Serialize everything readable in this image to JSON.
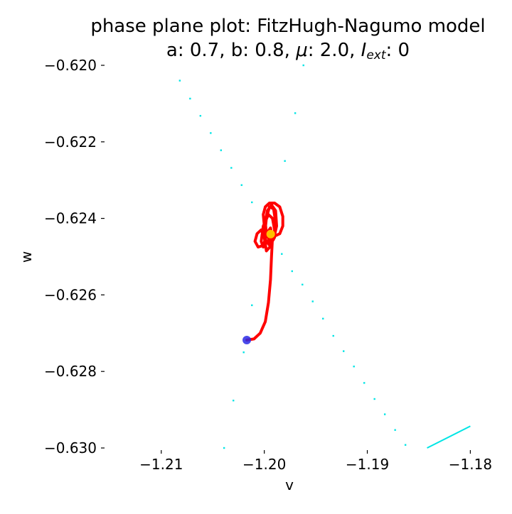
{
  "chart_data": {
    "type": "scatter",
    "title": "phase plane plot: FitzHugh-Nagumo model",
    "subtitle": {
      "a_label": "a:",
      "a_value": "0.7",
      "b_label": "b:",
      "b_value": "0.8",
      "mu_symbol": "μ",
      "mu_value": "2.0",
      "iext_symbol": "I",
      "iext_subscript": "ext",
      "iext_value": "0"
    },
    "xlabel": "v",
    "ylabel": "w",
    "xlim": [
      -1.2153,
      -1.1792
    ],
    "ylim": [
      -0.63,
      -0.62
    ],
    "xticks": [
      -1.21,
      -1.2,
      -1.19,
      -1.18
    ],
    "xtick_labels": [
      "−1.21",
      "−1.20",
      "−1.19",
      "−1.18"
    ],
    "yticks": [
      -0.62,
      -0.622,
      -0.624,
      -0.626,
      -0.628,
      -0.63
    ],
    "ytick_labels": [
      "−0.620",
      "−0.622",
      "−0.624",
      "−0.626",
      "−0.628",
      "−0.630"
    ],
    "grid": false,
    "nullcline_color": "#00e5e5",
    "nullcline_points": [
      [
        -1.2082,
        -0.6204
      ],
      [
        -1.2072,
        -0.62087
      ],
      [
        -1.2062,
        -0.62132
      ],
      [
        -1.2052,
        -0.62177
      ],
      [
        -1.2042,
        -0.62222
      ],
      [
        -1.2032,
        -0.62268
      ],
      [
        -1.2022,
        -0.62313
      ],
      [
        -1.2012,
        -0.62358
      ],
      [
        -1.1983,
        -0.62493
      ],
      [
        -1.1973,
        -0.62538
      ],
      [
        -1.1963,
        -0.62573
      ],
      [
        -1.1953,
        -0.62617
      ],
      [
        -1.1943,
        -0.62662
      ],
      [
        -1.1933,
        -0.62707
      ],
      [
        -1.1923,
        -0.62747
      ],
      [
        -1.1913,
        -0.62787
      ],
      [
        -1.1903,
        -0.6283
      ],
      [
        -1.1893,
        -0.62872
      ],
      [
        -1.1883,
        -0.62912
      ],
      [
        -1.1873,
        -0.62953
      ],
      [
        -1.1863,
        -0.62992
      ],
      [
        -1.1962,
        -0.62
      ],
      [
        -1.197,
        -0.62125
      ],
      [
        -1.198,
        -0.6225
      ],
      [
        -1.2012,
        -0.62627
      ],
      [
        -1.202,
        -0.6275
      ],
      [
        -1.203,
        -0.62876
      ],
      [
        -1.2039,
        -0.63
      ]
    ],
    "cyan_line": [
      [
        -1.1842,
        -0.63
      ],
      [
        -1.18,
        -0.62943
      ]
    ],
    "trajectory_color": "#ff0000",
    "trajectory_start": [
      -1.2017,
      -0.62718
    ],
    "trajectory_points": [
      [
        -1.2017,
        -0.62718
      ],
      [
        -1.201,
        -0.62715
      ],
      [
        -1.2004,
        -0.627
      ],
      [
        -1.1999,
        -0.6267
      ],
      [
        -1.1996,
        -0.6262
      ],
      [
        -1.1994,
        -0.6256
      ],
      [
        -1.1993,
        -0.625
      ],
      [
        -1.1992,
        -0.6245
      ],
      [
        -1.1994,
        -0.62425
      ],
      [
        -1.1998,
        -0.6244
      ],
      [
        -1.2001,
        -0.62475
      ],
      [
        -1.2003,
        -0.6246
      ],
      [
        -1.2001,
        -0.6242
      ],
      [
        -1.1996,
        -0.6239
      ],
      [
        -1.1992,
        -0.624
      ],
      [
        -1.199,
        -0.6243
      ],
      [
        -1.1993,
        -0.6247
      ],
      [
        -1.1998,
        -0.62485
      ],
      [
        -1.2,
        -0.6245
      ],
      [
        -1.1998,
        -0.624
      ],
      [
        -1.1995,
        -0.6237
      ],
      [
        -1.1991,
        -0.62375
      ],
      [
        -1.1989,
        -0.6241
      ],
      [
        -1.199,
        -0.6245
      ],
      [
        -1.1994,
        -0.62465
      ],
      [
        -1.1998,
        -0.6244
      ],
      [
        -1.1999,
        -0.6241
      ],
      [
        -1.1997,
        -0.6238
      ],
      [
        -1.1993,
        -0.62365
      ],
      [
        -1.1989,
        -0.6238
      ],
      [
        -1.1988,
        -0.6242
      ],
      [
        -1.1991,
        -0.62455
      ],
      [
        -1.1995,
        -0.6247
      ],
      [
        -1.1999,
        -0.62455
      ],
      [
        -1.2003,
        -0.6243
      ],
      [
        -1.2007,
        -0.6244
      ],
      [
        -1.2009,
        -0.6246
      ],
      [
        -1.2006,
        -0.62475
      ],
      [
        -1.2,
        -0.6247
      ],
      [
        -1.1994,
        -0.62455
      ],
      [
        -1.1989,
        -0.62445
      ],
      [
        -1.1985,
        -0.6244
      ],
      [
        -1.1982,
        -0.6242
      ],
      [
        -1.1982,
        -0.62395
      ],
      [
        -1.1985,
        -0.6237
      ],
      [
        -1.199,
        -0.6236
      ],
      [
        -1.1995,
        -0.6236
      ],
      [
        -1.1999,
        -0.6237
      ],
      [
        -1.2001,
        -0.6239
      ],
      [
        -1.2,
        -0.6242
      ],
      [
        -1.1997,
        -0.62445
      ],
      [
        -1.1994,
        -0.6246
      ]
    ],
    "equilibrium_point": [
      -1.19938,
      -0.62441
    ],
    "equilibrium_color": "#ffc000",
    "start_marker_color": "#2a2ae6"
  }
}
